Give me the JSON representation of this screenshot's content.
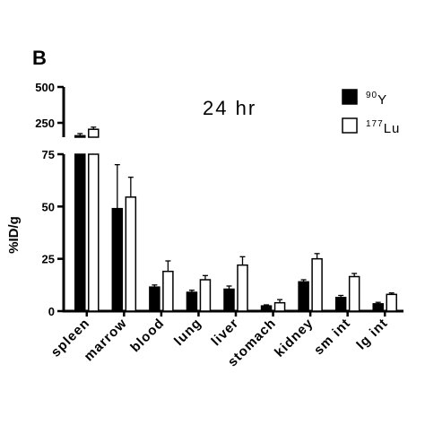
{
  "chart_data": {
    "type": "bar",
    "panel_label": "B",
    "annotation": "24 hr",
    "ylabel": "%ID/g",
    "categories": [
      "spleen",
      "marrow",
      "blood",
      "lung",
      "liver",
      "stomach",
      "kidney",
      "sm int",
      "lg int"
    ],
    "series": [
      {
        "name": "90Y",
        "name_sup": "90",
        "name_base": "Y",
        "fill": "#000000",
        "values": [
          160,
          49,
          11.5,
          9,
          10.5,
          2.5,
          14,
          6.5,
          3.5
        ],
        "errors": [
          15,
          21,
          1,
          1,
          1.5,
          0.5,
          1,
          1,
          0.7
        ]
      },
      {
        "name": "177Lu",
        "name_sup": "177",
        "name_base": "Lu",
        "fill": "#ffffff",
        "values": [
          205,
          54.5,
          19,
          15,
          22,
          4,
          25,
          16.5,
          8
        ],
        "errors": [
          15,
          9.5,
          5,
          2,
          4,
          1.5,
          2.5,
          1.5,
          0.7
        ]
      }
    ],
    "lower_axis": {
      "ylim": [
        0,
        75
      ],
      "ticks": [
        0,
        25,
        50,
        75
      ]
    },
    "upper_axis": {
      "ylim": [
        150,
        500
      ],
      "ticks": [
        250,
        500
      ]
    },
    "grid": false,
    "legend_position": "top-right"
  }
}
